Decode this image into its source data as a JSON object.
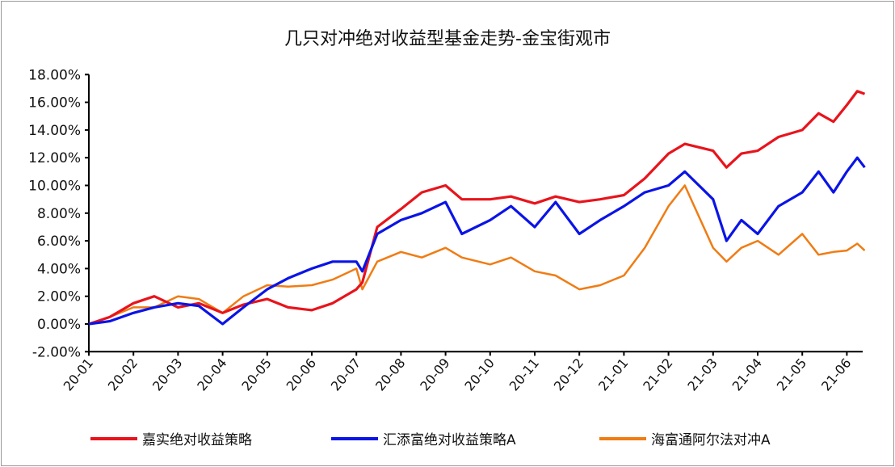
{
  "chart_data": {
    "type": "line",
    "title": "几只对冲绝对收益型基金走势-金宝街观市",
    "xlabel": "",
    "ylabel": "",
    "ylim": [
      -2,
      18
    ],
    "yticks": [
      "-2.00%",
      "0.00%",
      "2.00%",
      "4.00%",
      "6.00%",
      "8.00%",
      "10.00%",
      "12.00%",
      "14.00%",
      "16.00%",
      "18.00%"
    ],
    "xticks": [
      "20-01",
      "20-02",
      "20-03",
      "20-04",
      "20-05",
      "20-06",
      "20-07",
      "20-08",
      "20-09",
      "20-10",
      "20-11",
      "20-12",
      "21-01",
      "21-02",
      "21-03",
      "21-04",
      "21-05",
      "21-06"
    ],
    "grid": false,
    "legend_position": "bottom",
    "x": [
      "2020-01-01",
      "2020-01-15",
      "2020-02-01",
      "2020-02-15",
      "2020-03-01",
      "2020-03-15",
      "2020-04-01",
      "2020-04-15",
      "2020-05-01",
      "2020-05-15",
      "2020-06-01",
      "2020-06-15",
      "2020-07-01",
      "2020-07-05",
      "2020-07-15",
      "2020-08-01",
      "2020-08-15",
      "2020-09-01",
      "2020-09-12",
      "2020-10-01",
      "2020-10-15",
      "2020-11-01",
      "2020-11-15",
      "2020-12-01",
      "2020-12-15",
      "2021-01-01",
      "2021-01-15",
      "2021-02-01",
      "2021-02-12",
      "2021-03-01",
      "2021-03-10",
      "2021-03-20",
      "2021-04-01",
      "2021-04-15",
      "2021-05-01",
      "2021-05-12",
      "2021-05-22",
      "2021-06-01",
      "2021-06-08",
      "2021-06-13"
    ],
    "series": [
      {
        "name": "嘉实绝对收益策略",
        "color": "#e8141c",
        "values": [
          0,
          0.5,
          1.5,
          2.0,
          1.2,
          1.5,
          0.8,
          1.4,
          1.8,
          1.2,
          1.0,
          1.5,
          2.5,
          3.0,
          7.0,
          8.3,
          9.5,
          10.0,
          9.0,
          9.0,
          9.2,
          8.7,
          9.2,
          8.8,
          9.0,
          9.3,
          10.5,
          12.3,
          13.0,
          12.5,
          11.3,
          12.3,
          12.5,
          13.5,
          14.0,
          15.2,
          14.6,
          15.8,
          16.8,
          16.6
        ]
      },
      {
        "name": "汇添富绝对收益策略A",
        "color": "#0a14e6",
        "values": [
          0,
          0.2,
          0.8,
          1.2,
          1.5,
          1.3,
          0.0,
          1.2,
          2.5,
          3.3,
          4.0,
          4.5,
          4.5,
          3.8,
          6.5,
          7.5,
          8.0,
          8.8,
          6.5,
          7.5,
          8.5,
          7.0,
          8.8,
          6.5,
          7.5,
          8.5,
          9.5,
          10.0,
          11.0,
          9.0,
          6.0,
          7.5,
          6.5,
          8.5,
          9.5,
          11.0,
          9.5,
          11.0,
          12.0,
          11.3
        ]
      },
      {
        "name": "海富通阿尔法对冲A",
        "color": "#f07c14",
        "values": [
          0,
          0.5,
          1.2,
          1.2,
          2.0,
          1.8,
          0.8,
          2.0,
          2.8,
          2.7,
          2.8,
          3.2,
          4.0,
          2.5,
          4.5,
          5.2,
          4.8,
          5.5,
          4.8,
          4.3,
          4.8,
          3.8,
          3.5,
          2.5,
          2.8,
          3.5,
          5.5,
          8.5,
          10.0,
          5.5,
          4.5,
          5.5,
          6.0,
          5.0,
          6.5,
          5.0,
          5.2,
          5.3,
          5.8,
          5.3
        ]
      }
    ]
  }
}
